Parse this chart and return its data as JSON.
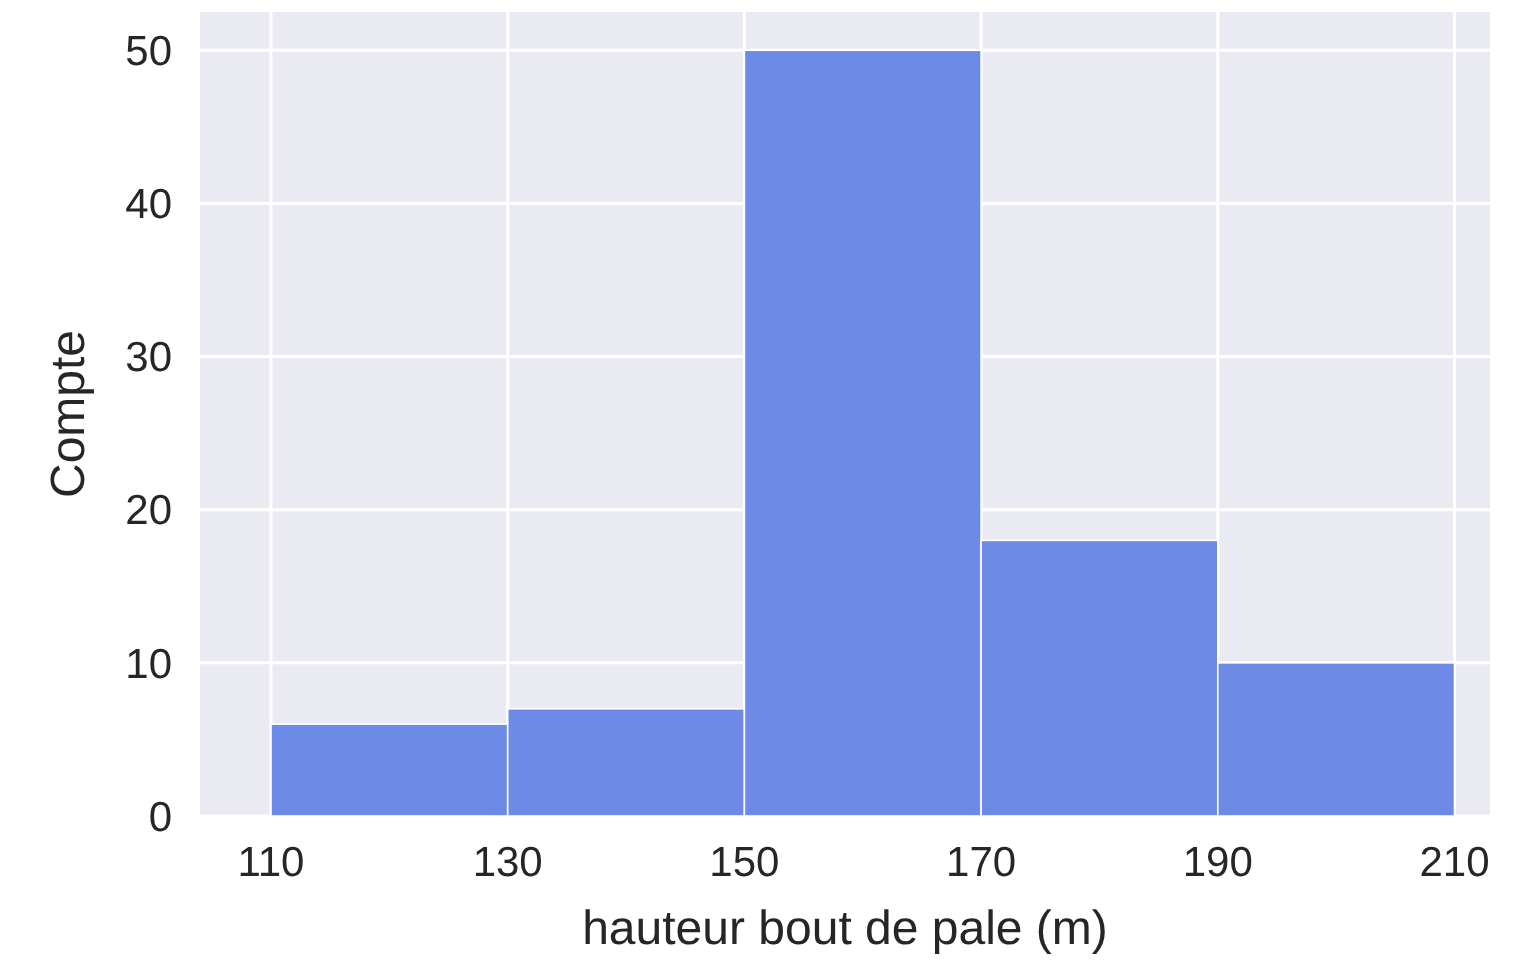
{
  "chart_data": {
    "type": "histogram",
    "xlabel": "hauteur bout de pale (m)",
    "ylabel": "Compte",
    "bins": [
      110,
      130,
      150,
      170,
      190,
      210
    ],
    "values": [
      6,
      7,
      50,
      18,
      10
    ],
    "color": "#6d8ae6",
    "xlim": [
      104,
      213
    ],
    "xticks": [
      110,
      130,
      150,
      170,
      190,
      210
    ],
    "ylim": [
      0,
      52.5
    ],
    "yticks": [
      0,
      10,
      20,
      30,
      40,
      50
    ],
    "grid": true
  }
}
